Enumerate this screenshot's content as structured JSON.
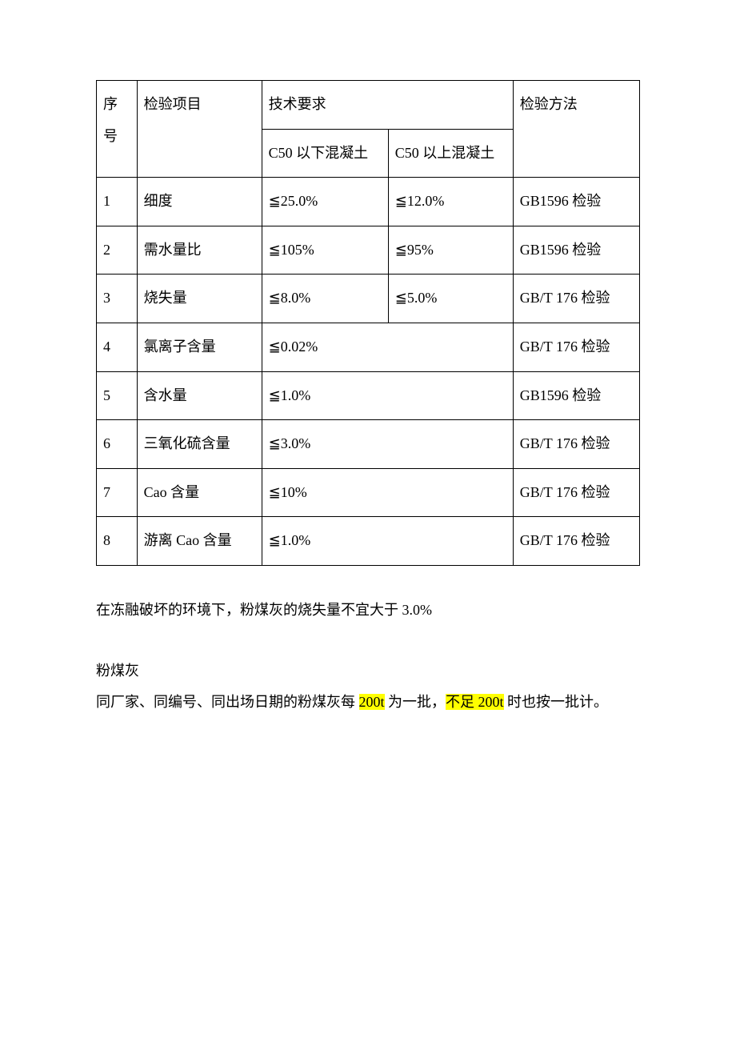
{
  "table": {
    "header": {
      "seq": "序号",
      "item": "检验项目",
      "req": "技术要求",
      "req_a": "C50 以下混凝土",
      "req_b": "C50 以上混凝土",
      "method": "检验方法"
    },
    "rows": [
      {
        "seq": "1",
        "item": "细度",
        "a": "≦25.0%",
        "b": "≦12.0%",
        "method": "GB1596 检验",
        "merged": false
      },
      {
        "seq": "2",
        "item": "需水量比",
        "a": "≦105%",
        "b": "≦95%",
        "method": "GB1596 检验",
        "merged": false
      },
      {
        "seq": "3",
        "item": "烧失量",
        "a": "≦8.0%",
        "b": "≦5.0%",
        "method": "GB/T 176 检验",
        "merged": false
      },
      {
        "seq": "4",
        "item": "氯离子含量",
        "a": "≦0.02%",
        "b": "",
        "method": "GB/T 176 检验",
        "merged": true
      },
      {
        "seq": "5",
        "item": "含水量",
        "a": "≦1.0%",
        "b": "",
        "method": "GB1596 检验",
        "merged": true
      },
      {
        "seq": "6",
        "item": "三氧化硫含量",
        "a": "≦3.0%",
        "b": "",
        "method": "GB/T 176 检验",
        "merged": true
      },
      {
        "seq": "7",
        "item": "Cao 含量",
        "a": "≦10%",
        "b": "",
        "method": "GB/T 176 检验",
        "merged": true
      },
      {
        "seq": "8",
        "item": "游离 Cao 含量",
        "a": "≦1.0%",
        "b": "",
        "method": "GB/T 176 检验",
        "merged": true
      }
    ]
  },
  "notes": {
    "p1": "在冻融破坏的环境下，粉煤灰的烧失量不宜大于 3.0%",
    "p2": "粉煤灰",
    "p3_a": "同厂家、同编号、同出场日期的粉煤灰每 ",
    "p3_hl1": "200t",
    "p3_b": " 为一批，",
    "p3_hl2": "不足 200t",
    "p3_c": " 时也按一批计。"
  },
  "style": {
    "highlight_color": "#ffff00",
    "border_color": "#000000",
    "font_size_pt": 14
  }
}
